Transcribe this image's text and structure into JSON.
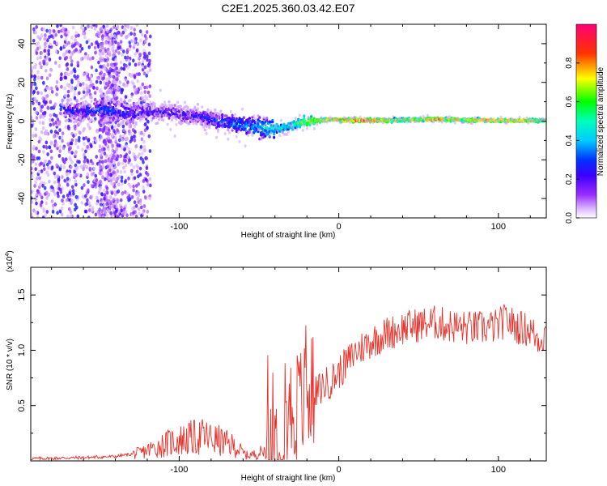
{
  "title": "C2E1.2025.360.03.42.E07",
  "chart_data": [
    {
      "type": "heatmap",
      "xlabel": "Height of straight line (km)",
      "ylabel": "Frequency (Hz)",
      "xlim": [
        -193,
        130
      ],
      "ylim": [
        -50,
        50
      ],
      "xticks": [
        -100,
        0,
        100
      ],
      "yticks": [
        -40,
        -20,
        0,
        20,
        40
      ],
      "grid": false,
      "colorbar": {
        "label": "Normalized spectral amplitude",
        "range": [
          0,
          1
        ],
        "ticks": [
          "0.0",
          "0.2",
          "0.4",
          "0.6",
          "0.8"
        ],
        "colormap": "rainbow (violet-blue-cyan-green-yellow-red-magenta)"
      },
      "ridge": {
        "description": "Doppler frequency ridge vs height; noisy below -140 km, spread around 0-10 Hz from -175 to -40 km, narrow near 0 Hz above -20 km",
        "x": [
          -165,
          -150,
          -130,
          -110,
          -95,
          -80,
          -70,
          -60,
          -50,
          -40,
          -32,
          -25,
          -15,
          -5,
          0,
          10,
          20,
          30,
          40,
          50,
          60,
          70,
          80,
          90,
          100,
          110,
          120,
          130
        ],
        "y": [
          5,
          6,
          4,
          5,
          3,
          1,
          -1,
          -2,
          -3,
          -4,
          -3,
          -1,
          0,
          1,
          0.5,
          0.5,
          0.3,
          0.3,
          0.5,
          0.8,
          1,
          0.8,
          0.5,
          0.5,
          0.3,
          0.3,
          0.3,
          0.2
        ],
        "amplitude": [
          0.35,
          0.4,
          0.35,
          0.3,
          0.3,
          0.35,
          0.4,
          0.45,
          0.5,
          0.6,
          0.55,
          0.65,
          0.8,
          0.85,
          0.9,
          0.95,
          0.95,
          0.8,
          0.75,
          0.8,
          0.9,
          0.85,
          0.8,
          0.85,
          0.9,
          0.85,
          0.8,
          0.75
        ]
      }
    },
    {
      "type": "line",
      "xlabel": "Height of straight line (km)",
      "ylabel": "SNR (10 * v/v)",
      "y_multiplier": "(x10",
      "y_multiplier_exp": "4",
      "xlim": [
        -193,
        130
      ],
      "ylim": [
        0,
        1.75
      ],
      "xticks": [
        -100,
        0,
        100
      ],
      "yticks": [
        0.5,
        1.0,
        1.5
      ],
      "ytick_labels": [
        "0.5",
        "1.0",
        "1.5"
      ],
      "grid": false,
      "series": [
        {
          "name": "SNR",
          "color": "#e8332c",
          "envelope_x": [
            -193,
            -160,
            -140,
            -125,
            -115,
            -105,
            -95,
            -85,
            -75,
            -65,
            -58,
            -52,
            -45,
            -40,
            -35,
            -30,
            -25,
            -20,
            -15,
            -10,
            -5,
            0,
            5,
            10,
            20,
            30,
            40,
            50,
            60,
            70,
            80,
            90,
            100,
            105,
            110,
            115,
            120,
            125,
            130
          ],
          "envelope_y": [
            0.02,
            0.03,
            0.04,
            0.07,
            0.12,
            0.17,
            0.2,
            0.22,
            0.18,
            0.13,
            0.05,
            0.06,
            0.1,
            0.2,
            0.35,
            0.45,
            0.5,
            0.55,
            0.6,
            0.68,
            0.72,
            0.8,
            0.88,
            0.98,
            1.08,
            1.15,
            1.2,
            1.23,
            1.25,
            1.22,
            1.2,
            1.2,
            1.22,
            1.28,
            1.22,
            1.2,
            1.18,
            1.1,
            1.15
          ]
        }
      ]
    }
  ]
}
